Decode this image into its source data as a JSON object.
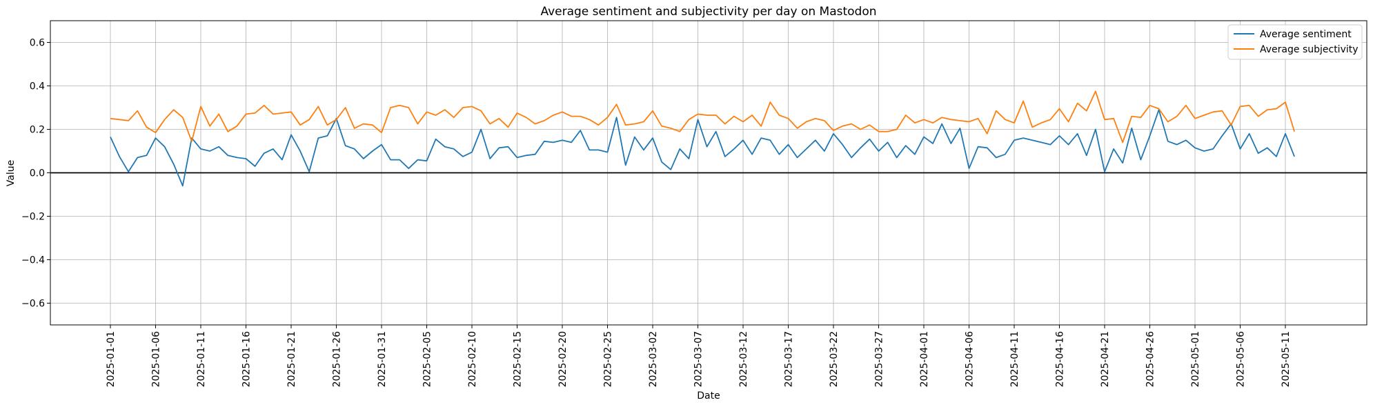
{
  "chart_data": {
    "type": "line",
    "title": "Average sentiment and subjectivity per day on Mastodon",
    "xlabel": "Date",
    "ylabel": "Value",
    "x_start": "2025-01-01",
    "x_end": "2025-05-12",
    "ylim": [
      -0.7,
      0.7
    ],
    "yticks": [
      "−0.6",
      "−0.4",
      "−0.2",
      "0.0",
      "0.2",
      "0.4",
      "0.6"
    ],
    "ytick_values": [
      -0.6,
      -0.4,
      -0.2,
      0.0,
      0.2,
      0.4,
      0.6
    ],
    "xticks": [
      "2025-01-01",
      "2025-01-06",
      "2025-01-11",
      "2025-01-16",
      "2025-01-21",
      "2025-01-26",
      "2025-01-31",
      "2025-02-05",
      "2025-02-10",
      "2025-02-15",
      "2025-02-20",
      "2025-02-25",
      "2025-03-02",
      "2025-03-07",
      "2025-03-12",
      "2025-03-17",
      "2025-03-22",
      "2025-03-27",
      "2025-04-01",
      "2025-04-06",
      "2025-04-11",
      "2025-04-16",
      "2025-04-21",
      "2025-04-26",
      "2025-05-01",
      "2025-05-06",
      "2025-05-11"
    ],
    "grid": true,
    "zero_line": true,
    "legend_position": "top-right",
    "series": [
      {
        "name": "Average sentiment",
        "color": "#1f77b4",
        "values": [
          0.165,
          0.075,
          0.005,
          0.07,
          0.08,
          0.16,
          0.12,
          0.04,
          -0.06,
          0.16,
          0.11,
          0.1,
          0.12,
          0.08,
          0.07,
          0.065,
          0.03,
          0.09,
          0.11,
          0.06,
          0.175,
          0.1,
          0.005,
          0.16,
          0.17,
          0.25,
          0.125,
          0.11,
          0.065,
          0.1,
          0.13,
          0.06,
          0.06,
          0.02,
          0.06,
          0.055,
          0.155,
          0.12,
          0.11,
          0.075,
          0.095,
          0.2,
          0.065,
          0.115,
          0.12,
          0.07,
          0.08,
          0.085,
          0.145,
          0.14,
          0.15,
          0.14,
          0.195,
          0.105,
          0.105,
          0.095,
          0.255,
          0.035,
          0.165,
          0.105,
          0.16,
          0.05,
          0.015,
          0.11,
          0.065,
          0.245,
          0.12,
          0.19,
          0.075,
          0.11,
          0.15,
          0.085,
          0.16,
          0.15,
          0.085,
          0.13,
          0.07,
          0.11,
          0.15,
          0.1,
          0.18,
          0.13,
          0.07,
          0.115,
          0.155,
          0.1,
          0.14,
          0.07,
          0.125,
          0.085,
          0.165,
          0.135,
          0.225,
          0.135,
          0.205,
          0.02,
          0.12,
          0.115,
          0.07,
          0.085,
          0.15,
          0.16,
          0.15,
          0.14,
          0.13,
          0.17,
          0.13,
          0.18,
          0.08,
          0.2,
          0.005,
          0.11,
          0.045,
          0.205,
          0.06,
          0.17,
          0.29,
          0.145,
          0.13,
          0.15,
          0.115,
          0.1,
          0.11,
          0.17,
          0.225,
          0.11,
          0.18,
          0.09,
          0.115,
          0.075,
          0.18,
          0.075
        ]
      },
      {
        "name": "Average subjectivity",
        "color": "#ff7f0e",
        "values": [
          0.25,
          0.245,
          0.24,
          0.285,
          0.21,
          0.185,
          0.245,
          0.29,
          0.255,
          0.145,
          0.305,
          0.215,
          0.27,
          0.19,
          0.215,
          0.27,
          0.275,
          0.31,
          0.27,
          0.275,
          0.28,
          0.22,
          0.245,
          0.305,
          0.22,
          0.245,
          0.3,
          0.205,
          0.225,
          0.22,
          0.185,
          0.3,
          0.31,
          0.3,
          0.225,
          0.28,
          0.265,
          0.29,
          0.255,
          0.3,
          0.305,
          0.285,
          0.225,
          0.25,
          0.21,
          0.275,
          0.255,
          0.225,
          0.24,
          0.265,
          0.28,
          0.26,
          0.26,
          0.245,
          0.22,
          0.255,
          0.315,
          0.22,
          0.225,
          0.235,
          0.285,
          0.215,
          0.205,
          0.19,
          0.245,
          0.27,
          0.265,
          0.265,
          0.225,
          0.26,
          0.235,
          0.265,
          0.215,
          0.325,
          0.265,
          0.25,
          0.205,
          0.235,
          0.25,
          0.24,
          0.195,
          0.215,
          0.225,
          0.2,
          0.22,
          0.19,
          0.19,
          0.2,
          0.265,
          0.23,
          0.245,
          0.23,
          0.255,
          0.245,
          0.24,
          0.235,
          0.25,
          0.18,
          0.285,
          0.245,
          0.23,
          0.33,
          0.21,
          0.23,
          0.245,
          0.295,
          0.235,
          0.32,
          0.285,
          0.375,
          0.245,
          0.25,
          0.14,
          0.26,
          0.255,
          0.31,
          0.295,
          0.235,
          0.26,
          0.31,
          0.25,
          0.265,
          0.28,
          0.285,
          0.22,
          0.305,
          0.31,
          0.26,
          0.29,
          0.295,
          0.325,
          0.19
        ]
      }
    ]
  }
}
